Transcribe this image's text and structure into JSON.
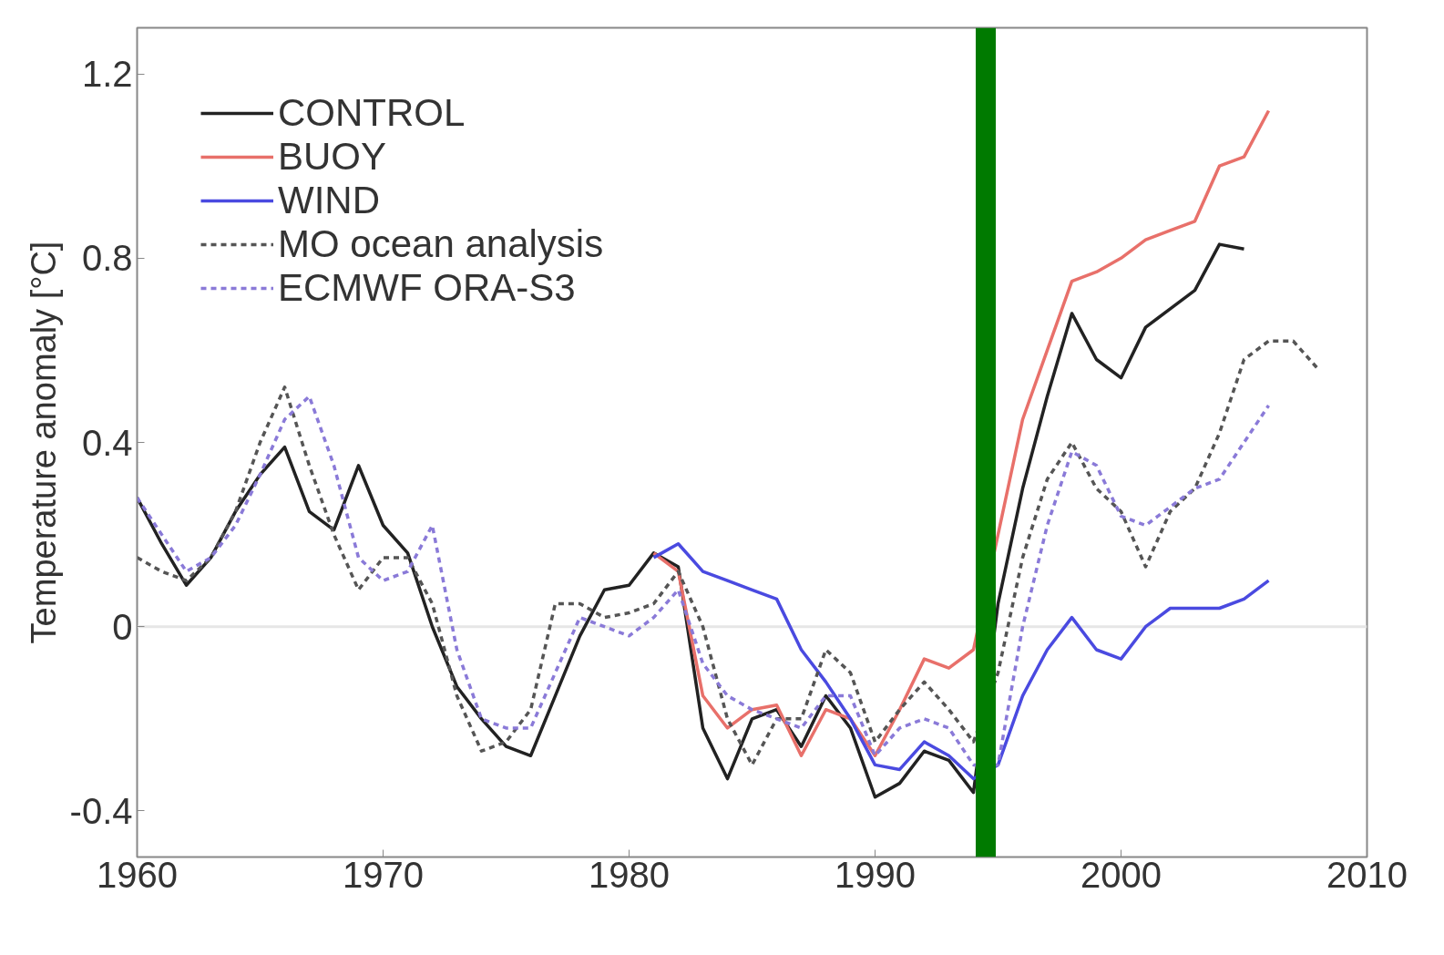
{
  "chart_data": {
    "type": "line",
    "ylabel": "Temperature anomaly [°C]",
    "xlim": [
      1960,
      2010
    ],
    "xticks": [
      1960,
      1970,
      1980,
      1990,
      2000,
      2010
    ],
    "ylim": [
      -0.5,
      1.3
    ],
    "yticks": [
      -0.4,
      0,
      0.4,
      0.8,
      1.2
    ],
    "grid": false,
    "legend": "top left",
    "line_style": "solid",
    "ref_lines": [
      {
        "axis": "y",
        "value": 0,
        "color": "#e6e6e6",
        "line_style": "solid"
      },
      {
        "axis": "x",
        "value": 1994.5,
        "color": "#007a00",
        "line_style": "solid"
      }
    ],
    "series": [
      {
        "name": "CONTROL",
        "color": "#222222",
        "x": [
          1960,
          1961,
          1962,
          1963,
          1964,
          1965,
          1966,
          1967,
          1968,
          1969,
          1970,
          1971,
          1972,
          1973,
          1974,
          1975,
          1976,
          1977,
          1978,
          1979,
          1980,
          1981,
          1982,
          1983,
          1984,
          1985,
          1986,
          1987,
          1988,
          1989,
          1990,
          1991,
          1992,
          1993,
          1994,
          1995,
          1996,
          1997,
          1998,
          1999,
          2000,
          2001,
          2002,
          2003,
          2004,
          2005
        ],
        "values": [
          0.28,
          0.18,
          0.09,
          0.15,
          0.25,
          0.33,
          0.39,
          0.25,
          0.21,
          0.35,
          0.22,
          0.16,
          0.0,
          -0.13,
          -0.2,
          -0.26,
          -0.28,
          -0.15,
          -0.02,
          0.08,
          0.09,
          0.16,
          0.13,
          -0.22,
          -0.33,
          -0.2,
          -0.18,
          -0.26,
          -0.15,
          -0.22,
          -0.37,
          -0.34,
          -0.27,
          -0.29,
          -0.36,
          0.05,
          0.3,
          0.5,
          0.68,
          0.58,
          0.54,
          0.65,
          0.69,
          0.73,
          0.83,
          0.82
        ]
      },
      {
        "name": "BUOY",
        "color": "#e8706a",
        "x": [
          1981,
          1982,
          1983,
          1984,
          1985,
          1986,
          1987,
          1988,
          1989,
          1990,
          1991,
          1992,
          1993,
          1994,
          1995,
          1996,
          1997,
          1998,
          1999,
          2000,
          2001,
          2002,
          2003,
          2004,
          2005,
          2006
        ],
        "values": [
          0.16,
          0.12,
          -0.15,
          -0.22,
          -0.18,
          -0.17,
          -0.28,
          -0.18,
          -0.2,
          -0.28,
          -0.18,
          -0.07,
          -0.09,
          -0.05,
          0.2,
          0.45,
          0.6,
          0.75,
          0.77,
          0.8,
          0.84,
          0.86,
          0.88,
          1.0,
          1.02,
          1.12
        ]
      },
      {
        "name": "WIND",
        "color": "#4a4ae0",
        "x": [
          1981,
          1982,
          1983,
          1984,
          1985,
          1986,
          1987,
          1988,
          1989,
          1990,
          1991,
          1992,
          1993,
          1994,
          1995,
          1996,
          1997,
          1998,
          1999,
          2000,
          2001,
          2002,
          2003,
          2004,
          2005,
          2006
        ],
        "values": [
          0.15,
          0.18,
          0.12,
          0.1,
          0.08,
          0.06,
          -0.05,
          -0.12,
          -0.2,
          -0.3,
          -0.31,
          -0.25,
          -0.28,
          -0.33,
          -0.3,
          -0.15,
          -0.05,
          0.02,
          -0.05,
          -0.07,
          0.0,
          0.04,
          0.04,
          0.04,
          0.06,
          0.1
        ]
      },
      {
        "name": "MO ocean analysis",
        "color": "#555555",
        "line_style": "dashed",
        "x": [
          1960,
          1961,
          1962,
          1963,
          1964,
          1965,
          1966,
          1967,
          1968,
          1969,
          1970,
          1971,
          1972,
          1973,
          1974,
          1975,
          1976,
          1977,
          1978,
          1979,
          1980,
          1981,
          1982,
          1983,
          1984,
          1985,
          1986,
          1987,
          1988,
          1989,
          1990,
          1991,
          1992,
          1993,
          1994,
          1995,
          1996,
          1997,
          1998,
          1999,
          2000,
          2001,
          2002,
          2003,
          2004,
          2005,
          2006,
          2007,
          2008
        ],
        "values": [
          0.15,
          0.12,
          0.1,
          0.15,
          0.25,
          0.4,
          0.52,
          0.35,
          0.2,
          0.08,
          0.15,
          0.15,
          0.05,
          -0.15,
          -0.27,
          -0.25,
          -0.18,
          0.05,
          0.05,
          0.02,
          0.03,
          0.05,
          0.12,
          0.0,
          -0.2,
          -0.3,
          -0.2,
          -0.2,
          -0.05,
          -0.1,
          -0.25,
          -0.18,
          -0.12,
          -0.18,
          -0.25,
          -0.1,
          0.15,
          0.32,
          0.4,
          0.3,
          0.25,
          0.13,
          0.25,
          0.3,
          0.42,
          0.58,
          0.62,
          0.62,
          0.56
        ]
      },
      {
        "name": "ECMWF ORA-S3",
        "color": "#8a7ad8",
        "line_style": "dashed",
        "x": [
          1960,
          1961,
          1962,
          1963,
          1964,
          1965,
          1966,
          1967,
          1968,
          1969,
          1970,
          1971,
          1972,
          1973,
          1974,
          1975,
          1976,
          1977,
          1978,
          1979,
          1980,
          1981,
          1982,
          1983,
          1984,
          1985,
          1986,
          1987,
          1988,
          1989,
          1990,
          1991,
          1992,
          1993,
          1994,
          1995,
          1996,
          1997,
          1998,
          1999,
          2000,
          2001,
          2002,
          2003,
          2004,
          2005,
          2006
        ],
        "values": [
          0.28,
          0.2,
          0.12,
          0.15,
          0.22,
          0.33,
          0.45,
          0.5,
          0.35,
          0.15,
          0.1,
          0.12,
          0.22,
          -0.05,
          -0.2,
          -0.22,
          -0.22,
          -0.1,
          0.02,
          0.0,
          -0.02,
          0.02,
          0.08,
          -0.08,
          -0.15,
          -0.18,
          -0.2,
          -0.22,
          -0.15,
          -0.15,
          -0.28,
          -0.22,
          -0.2,
          -0.22,
          -0.3,
          -0.3,
          0.0,
          0.22,
          0.38,
          0.35,
          0.24,
          0.22,
          0.26,
          0.3,
          0.32,
          0.4,
          0.48
        ]
      }
    ]
  }
}
